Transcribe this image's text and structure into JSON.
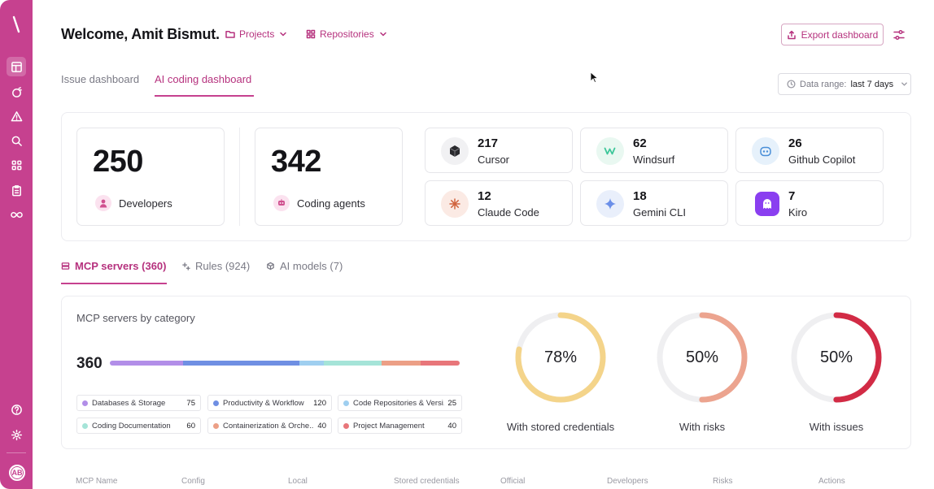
{
  "sidebar": {
    "items": [
      {
        "name": "dashboard",
        "icon": "layout-icon",
        "active": true
      },
      {
        "name": "findings",
        "icon": "target-icon"
      },
      {
        "name": "alerts",
        "icon": "warning-icon"
      },
      {
        "name": "search",
        "icon": "search-icon"
      },
      {
        "name": "apps",
        "icon": "grid-icon"
      },
      {
        "name": "reports",
        "icon": "clipboard-icon"
      },
      {
        "name": "integrations",
        "icon": "infinity-icon"
      },
      {
        "name": "help",
        "icon": "help-icon"
      },
      {
        "name": "settings",
        "icon": "gear-icon"
      }
    ],
    "avatar_initials": "AB",
    "accent": "#c6418f"
  },
  "header": {
    "welcome": "Welcome, Amit Bismut.",
    "projects_label": "Projects",
    "repositories_label": "Repositories",
    "export_label": "Export dashboard"
  },
  "tabs": {
    "issue": "Issue dashboard",
    "ai_coding": "AI coding dashboard"
  },
  "date_range": {
    "label": "Data range:",
    "value": "last 7 days"
  },
  "stats": {
    "developers": {
      "value": "250",
      "label": "Developers"
    },
    "agents": {
      "value": "342",
      "label": "Coding agents"
    }
  },
  "tools": [
    {
      "value": "217",
      "name": "Cursor",
      "icon": "cursor-logo-icon"
    },
    {
      "value": "62",
      "name": "Windsurf",
      "icon": "windsurf-logo-icon"
    },
    {
      "value": "26",
      "name": "Github Copilot",
      "icon": "copilot-logo-icon"
    },
    {
      "value": "12",
      "name": "Claude Code",
      "icon": "claude-logo-icon"
    },
    {
      "value": "18",
      "name": "Gemini CLI",
      "icon": "gemini-logo-icon"
    },
    {
      "value": "7",
      "name": "Kiro",
      "icon": "kiro-logo-icon"
    }
  ],
  "section_tabs": {
    "mcp": "MCP servers (360)",
    "rules": "Rules (924)",
    "models": "AI models (7)"
  },
  "mcp": {
    "title": "MCP servers by category",
    "total": "360",
    "categories": [
      {
        "name": "Databases & Storage",
        "value": 75,
        "color": "#b28ee8"
      },
      {
        "name": "Productivity & Workflow",
        "value": 120,
        "color": "#6f8fe3"
      },
      {
        "name": "Code Repositories & Versi...",
        "value": 25,
        "color": "#9fcff0"
      },
      {
        "name": "Coding Documentation",
        "value": 60,
        "color": "#a5e4d8"
      },
      {
        "name": "Containerization & Orche...",
        "value": 40,
        "color": "#ec9f86"
      },
      {
        "name": "Project Management",
        "value": 40,
        "color": "#e8767a"
      }
    ]
  },
  "donuts": [
    {
      "value": "78%",
      "fraction": 0.78,
      "label": "With stored credentials",
      "color": "#f4d48a"
    },
    {
      "value": "50%",
      "fraction": 0.5,
      "label": "With risks",
      "color": "#eca48f"
    },
    {
      "value": "50%",
      "fraction": 0.5,
      "label": "With issues",
      "color": "#d22b45"
    }
  ],
  "table": {
    "columns": [
      "MCP Name",
      "Config",
      "Local",
      "Stored credentials",
      "Official",
      "Developers",
      "Risks",
      "Actions"
    ]
  }
}
